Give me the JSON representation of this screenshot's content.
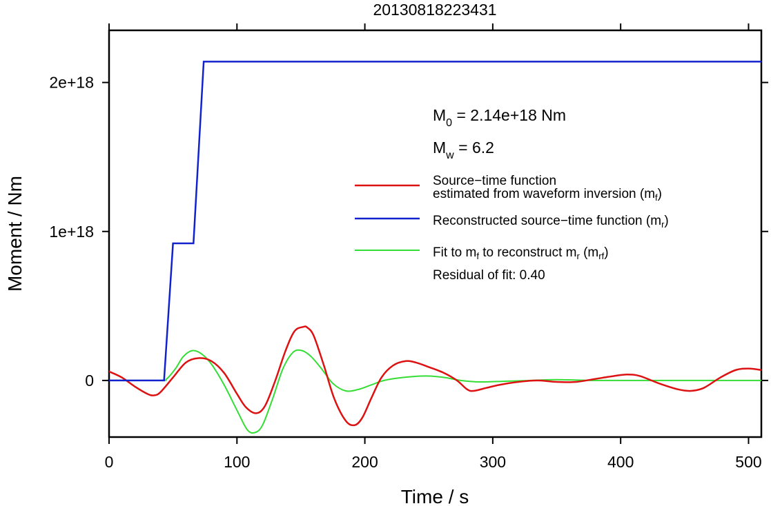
{
  "chart_data": {
    "type": "line",
    "title": "20130818223431",
    "xlabel": "Time / s",
    "ylabel": "Moment / Nm",
    "xlim": [
      0,
      510
    ],
    "ylim": [
      -3.8e+17,
      2.35e+18
    ],
    "xticks": [
      0,
      100,
      200,
      300,
      400,
      500
    ],
    "xtick_labels": [
      "0",
      "100",
      "200",
      "300",
      "400",
      "500"
    ],
    "yticks": [
      0,
      1e+18,
      2e+18
    ],
    "ytick_labels": [
      "0",
      "1e+18",
      "2e+18"
    ],
    "grid": false,
    "legend_position": "right",
    "series": [
      {
        "name": "Source−time function estimated from waveform inversion (mf)",
        "color": "#dd1111",
        "x": [
          0,
          10,
          20,
          30,
          35,
          40,
          50,
          60,
          70,
          80,
          90,
          100,
          107,
          115,
          122,
          130,
          138,
          145,
          152,
          155,
          160,
          168,
          176,
          185,
          192,
          198,
          205,
          213,
          222,
          232,
          240,
          250,
          262,
          272,
          280,
          285,
          295,
          305,
          320,
          335,
          350,
          365,
          380,
          395,
          405,
          415,
          430,
          445,
          455,
          465,
          478,
          490,
          500,
          510
        ],
        "y": [
          6e+16,
          2e+16,
          -4e+16,
          -9e+16,
          -1e+17,
          -8e+16,
          2e+16,
          1.2e+17,
          1.5e+17,
          1.3e+17,
          5e+16,
          -9e+16,
          -1.8e+17,
          -2.2e+17,
          -1.7e+17,
          0.0,
          2e+17,
          3.3e+17,
          3.6e+17,
          3.55e+17,
          3e+17,
          1e+17,
          -1.2e+17,
          -2.7e+17,
          -3e+17,
          -2.5e+17,
          -1.2e+17,
          2e+16,
          1e+17,
          1.3e+17,
          1.2e+17,
          9e+16,
          5e+16,
          0.0,
          -6e+16,
          -7e+16,
          -5e+16,
          -3e+16,
          -1e+16,
          0.0,
          -1e+16,
          -1e+16,
          1e+16,
          3e+16,
          4e+16,
          3e+16,
          -2e+16,
          -6e+16,
          -7e+16,
          -5e+16,
          2e+16,
          7e+16,
          8e+16,
          7e+16
        ]
      },
      {
        "name": "Reconstructed source−time function (mr)",
        "color": "#1122cc",
        "x": [
          0,
          43,
          50,
          66,
          74,
          510
        ],
        "y": [
          0,
          0,
          9.2e+17,
          9.2e+17,
          2.14e+18,
          2.14e+18
        ]
      },
      {
        "name": "Fit to mf to reconstruct mr (mrf)",
        "color": "#33dd33",
        "x": [
          0,
          40,
          45,
          52,
          58,
          65,
          72,
          80,
          90,
          100,
          108,
          114,
          120,
          128,
          136,
          144,
          151,
          158,
          166,
          175,
          185,
          195,
          205,
          215,
          230,
          248,
          262,
          275,
          290,
          310,
          330,
          350,
          380,
          420,
          460,
          510
        ],
        "y": [
          0,
          0,
          1e+16,
          8e+16,
          1.6e+17,
          2e+17,
          1.8e+17,
          1.1e+17,
          -3e+16,
          -2e+17,
          -3.3e+17,
          -3.5e+17,
          -3e+17,
          -1.2e+17,
          8e+16,
          1.9e+17,
          2e+17,
          1.6e+17,
          8e+16,
          -2e+16,
          -7e+16,
          -6e+16,
          -3e+16,
          0.0,
          2e+16,
          3e+16,
          2e+16,
          0.0,
          -1e+16,
          -5000000000000000.0,
          0.0,
          5000000000000000.0,
          0.0,
          0.0,
          0.0,
          0.0
        ]
      }
    ],
    "annotations": {
      "m0": {
        "sym": "M",
        "sub": "0",
        "rest": " = 2.14e+18 Nm"
      },
      "mw": {
        "sym": "M",
        "sub": "w",
        "rest": " = 6.2"
      },
      "residual": "Residual of fit: 0.40"
    },
    "legend": [
      {
        "lines": [
          "Source−time function",
          "estimated from waveform inversion (m",
          "f",
          ")"
        ]
      },
      {
        "text": "Reconstructed source−time function (m",
        "sub": "r",
        "close": ")"
      },
      {
        "text": "Fit to m",
        "sub": "f",
        "mid": " to reconstruct m",
        "sub2": "r",
        "mid2": " (m",
        "sub3": "rf",
        "close": ")"
      }
    ]
  }
}
